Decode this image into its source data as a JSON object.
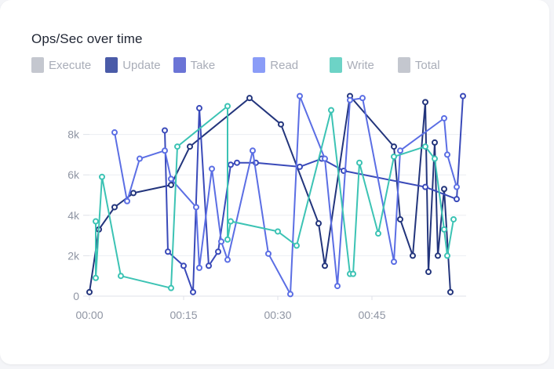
{
  "chart_data": {
    "type": "line",
    "title": "Ops/Sec over time",
    "xlabel": "",
    "ylabel": "",
    "legend_position": "top-left",
    "grid": true,
    "x_ticks": [
      "00:00",
      "00:15",
      "00:30",
      "00:45"
    ],
    "x_tick_values": [
      0,
      15,
      30,
      45
    ],
    "y_ticks": [
      "0",
      "2k",
      "4k",
      "6k",
      "8k"
    ],
    "y_tick_values": [
      0,
      2000,
      4000,
      6000,
      8000
    ],
    "xlim": [
      0,
      60
    ],
    "ylim": [
      0,
      10000
    ],
    "legend": [
      {
        "name": "Execute",
        "color": "#c4c7cf"
      },
      {
        "name": "Update",
        "color": "#4a5ba8"
      },
      {
        "name": "Take",
        "color": "#6b74d6"
      },
      {
        "name": "Read",
        "color": "#8a9cf7"
      },
      {
        "name": "Write",
        "color": "#6dd3c6"
      },
      {
        "name": "Total",
        "color": "#c4c7cf"
      }
    ],
    "series": [
      {
        "legend_index": 1,
        "color": "#23357c",
        "x": [
          0,
          1.5,
          4,
          7,
          13,
          16,
          25.5,
          30.5,
          36.5,
          37.5,
          41.5,
          48.5,
          49.5,
          51.5,
          53.5,
          54,
          55,
          55.5,
          56.5,
          57.5
        ],
        "y": [
          200,
          3300,
          4400,
          5100,
          5500,
          7400,
          9800,
          8500,
          3600,
          1500,
          9900,
          7400,
          3800,
          2000,
          9600,
          1200,
          7600,
          2000,
          5300,
          200
        ]
      },
      {
        "legend_index": 2,
        "color": "#3a4ab9",
        "x": [
          12,
          12.5,
          15,
          16.5,
          17.5,
          19,
          20.5,
          22.5,
          23.5,
          26.5,
          33.5,
          37,
          40.5,
          53.5,
          58.5,
          59.5
        ],
        "y": [
          8200,
          2200,
          1500,
          200,
          9300,
          1500,
          2200,
          6500,
          6600,
          6600,
          6400,
          6800,
          6200,
          5400,
          4800,
          9900
        ]
      },
      {
        "legend_index": 3,
        "color": "#5b6ee4",
        "x": [
          4,
          6,
          8,
          12,
          13,
          17,
          17.5,
          19.5,
          21,
          22,
          26,
          28.5,
          32,
          33.5,
          37.5,
          39.5,
          41.5,
          43.5,
          48.5,
          49.5,
          56.5,
          57,
          58.5
        ],
        "y": [
          8100,
          4700,
          6800,
          7200,
          5800,
          4400,
          1400,
          6300,
          2700,
          1800,
          7200,
          2100,
          100,
          9900,
          6800,
          500,
          9700,
          9800,
          1700,
          7200,
          8800,
          7000,
          5400
        ]
      },
      {
        "legend_index": 4,
        "color": "#3cc3b4",
        "x": [
          1,
          1,
          2,
          5,
          13,
          14,
          22,
          22,
          22.5,
          30,
          33,
          38.5,
          41.5,
          42,
          43,
          46,
          48.5,
          53.5,
          55,
          56.5,
          57,
          58
        ],
        "y": [
          3700,
          900,
          5900,
          1000,
          400,
          7400,
          9400,
          2800,
          3700,
          3200,
          2500,
          9200,
          1100,
          1100,
          6600,
          3100,
          6900,
          7400,
          6800,
          3300,
          2000,
          3800
        ]
      }
    ]
  }
}
